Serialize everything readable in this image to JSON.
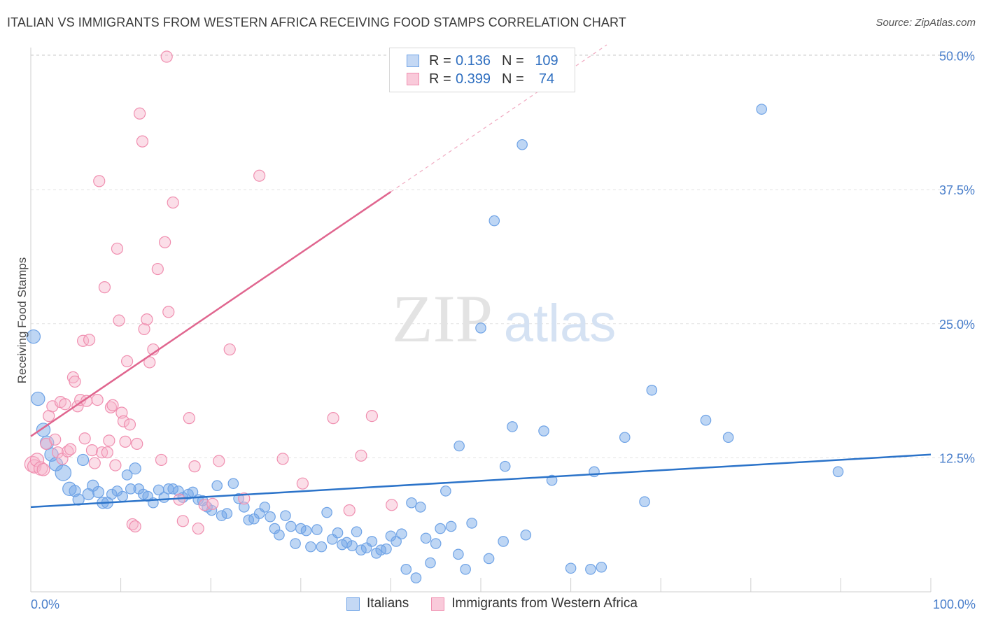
{
  "header": {
    "title": "ITALIAN VS IMMIGRANTS FROM WESTERN AFRICA RECEIVING FOOD STAMPS CORRELATION CHART",
    "source": "Source: ZipAtlas.com"
  },
  "watermark": {
    "left": "ZIP",
    "right": "atlas"
  },
  "legend_top": {
    "rows": [
      {
        "r_label": "R =",
        "r_value": "0.136",
        "n_label": "N =",
        "n_value": "109"
      },
      {
        "r_label": "R =",
        "r_value": "0.399",
        "n_label": "N =",
        "n_value": "74"
      }
    ]
  },
  "chart_data": {
    "type": "scatter",
    "xlabel": "",
    "ylabel": "Receiving Food Stamps",
    "xlim": [
      0,
      100
    ],
    "ylim": [
      0,
      52
    ],
    "x_tick_labels": [
      "0.0%",
      "100.0%"
    ],
    "y_ticks": [
      12.5,
      25.0,
      37.5,
      50.0
    ],
    "y_tick_labels": [
      "12.5%",
      "25.0%",
      "37.5%",
      "50.0%"
    ],
    "grid": "horizontal dashed",
    "legend_position": "bottom",
    "colors": {
      "italians": "#6fa3e6",
      "immigrants": "#f08fb0",
      "italians_line": "#2b73c9",
      "immigrants_line": "#e0668f",
      "axis_text": "#4a7fcb"
    },
    "series": [
      {
        "name": "Italians",
        "r": 0.136,
        "n": 109,
        "trend": {
          "x": [
            0,
            100
          ],
          "y": [
            7.9,
            12.8
          ]
        },
        "points": [
          [
            0.3,
            23.8,
            12
          ],
          [
            0.8,
            18.0,
            12
          ],
          [
            1.4,
            15.1,
            12
          ],
          [
            1.8,
            13.9,
            12
          ],
          [
            2.3,
            12.8,
            12
          ],
          [
            2.8,
            11.9,
            12
          ],
          [
            3.6,
            11.1,
            14
          ],
          [
            4.3,
            9.6,
            12
          ],
          [
            4.9,
            9.4,
            10
          ],
          [
            5.3,
            8.6,
            10
          ],
          [
            5.8,
            12.3,
            10
          ],
          [
            6.4,
            9.1,
            10
          ],
          [
            6.9,
            9.9,
            10
          ],
          [
            7.5,
            9.3,
            10
          ],
          [
            8.0,
            8.3,
            10
          ],
          [
            8.5,
            8.3,
            10
          ],
          [
            9.0,
            9.1,
            9
          ],
          [
            9.6,
            9.4,
            9
          ],
          [
            10.2,
            8.9,
            9
          ],
          [
            10.7,
            10.9,
            9
          ],
          [
            11.1,
            9.6,
            9
          ],
          [
            11.6,
            11.5,
            10
          ],
          [
            12.0,
            9.6,
            9
          ],
          [
            12.5,
            9.1,
            9
          ],
          [
            13.0,
            8.9,
            9
          ],
          [
            13.6,
            8.3,
            9
          ],
          [
            14.2,
            9.5,
            9
          ],
          [
            14.8,
            8.8,
            9
          ],
          [
            15.3,
            9.6,
            9
          ],
          [
            15.8,
            9.6,
            9
          ],
          [
            16.4,
            9.4,
            9
          ],
          [
            16.9,
            8.8,
            9
          ],
          [
            17.5,
            9.1,
            9
          ],
          [
            18.0,
            9.3,
            9
          ],
          [
            18.6,
            8.6,
            9
          ],
          [
            19.1,
            8.5,
            9
          ],
          [
            19.6,
            7.9,
            9
          ],
          [
            20.1,
            7.6,
            9
          ],
          [
            20.7,
            9.9,
            9
          ],
          [
            21.2,
            7.1,
            9
          ],
          [
            21.8,
            7.3,
            9
          ],
          [
            22.5,
            10.1,
            9
          ],
          [
            23.1,
            8.7,
            9
          ],
          [
            23.7,
            7.9,
            9
          ],
          [
            24.2,
            6.7,
            9
          ],
          [
            24.8,
            6.8,
            9
          ],
          [
            25.4,
            7.3,
            9
          ],
          [
            26.0,
            7.9,
            9
          ],
          [
            26.6,
            7.0,
            9
          ],
          [
            27.1,
            5.9,
            9
          ],
          [
            27.6,
            5.3,
            9
          ],
          [
            28.3,
            7.1,
            9
          ],
          [
            28.9,
            6.1,
            9
          ],
          [
            29.4,
            4.5,
            9
          ],
          [
            30.0,
            5.9,
            9
          ],
          [
            30.6,
            5.7,
            9
          ],
          [
            31.1,
            4.2,
            9
          ],
          [
            31.8,
            5.8,
            9
          ],
          [
            32.3,
            4.2,
            9
          ],
          [
            32.9,
            7.4,
            9
          ],
          [
            33.5,
            4.9,
            9
          ],
          [
            34.1,
            5.5,
            9
          ],
          [
            34.6,
            4.4,
            9
          ],
          [
            35.1,
            4.6,
            9
          ],
          [
            35.7,
            4.3,
            9
          ],
          [
            36.2,
            5.6,
            9
          ],
          [
            36.7,
            3.9,
            9
          ],
          [
            37.3,
            4.1,
            9
          ],
          [
            37.9,
            4.7,
            9
          ],
          [
            38.4,
            3.6,
            9
          ],
          [
            38.9,
            3.9,
            9
          ],
          [
            39.5,
            4.0,
            9
          ],
          [
            40.0,
            5.2,
            9
          ],
          [
            40.6,
            4.7,
            9
          ],
          [
            41.2,
            5.4,
            9
          ],
          [
            41.7,
            2.1,
            9
          ],
          [
            42.3,
            8.3,
            9
          ],
          [
            42.8,
            1.3,
            9
          ],
          [
            43.3,
            7.9,
            9
          ],
          [
            43.9,
            5.0,
            9
          ],
          [
            44.4,
            2.7,
            9
          ],
          [
            45.0,
            4.5,
            9
          ],
          [
            45.5,
            5.9,
            9
          ],
          [
            46.1,
            9.4,
            9
          ],
          [
            46.7,
            6.1,
            9
          ],
          [
            47.5,
            3.5,
            9
          ],
          [
            47.6,
            13.6,
            9
          ],
          [
            48.3,
            2.1,
            9
          ],
          [
            49.0,
            6.4,
            9
          ],
          [
            50.0,
            24.6,
            9
          ],
          [
            50.9,
            3.1,
            9
          ],
          [
            51.5,
            34.6,
            9
          ],
          [
            52.5,
            4.7,
            9
          ],
          [
            52.7,
            11.7,
            9
          ],
          [
            53.5,
            15.4,
            9
          ],
          [
            54.6,
            41.7,
            9
          ],
          [
            55.0,
            5.3,
            9
          ],
          [
            57.0,
            15.0,
            9
          ],
          [
            57.9,
            10.4,
            9
          ],
          [
            60.0,
            2.2,
            9
          ],
          [
            62.2,
            2.1,
            9
          ],
          [
            62.6,
            11.2,
            9
          ],
          [
            63.4,
            2.3,
            9
          ],
          [
            66.0,
            14.4,
            9
          ],
          [
            68.2,
            8.4,
            9
          ],
          [
            69.0,
            18.8,
            9
          ],
          [
            75.0,
            16.0,
            9
          ],
          [
            77.5,
            14.4,
            9
          ],
          [
            81.2,
            45.0,
            9
          ],
          [
            89.7,
            11.2,
            9
          ]
        ]
      },
      {
        "name": "Immigrants from Western Africa",
        "r": 0.399,
        "n": 74,
        "trend": {
          "x": [
            0,
            40
          ],
          "y": [
            14.5,
            37.3
          ]
        },
        "trend_dashed": {
          "x": [
            40,
            64
          ],
          "y": [
            37.3,
            51.0
          ]
        },
        "points": [
          [
            0.2,
            11.9,
            14
          ],
          [
            0.4,
            11.7,
            12
          ],
          [
            0.7,
            12.3,
            12
          ],
          [
            1.1,
            11.5,
            12
          ],
          [
            1.4,
            11.4,
            11
          ],
          [
            1.7,
            13.8,
            10
          ],
          [
            2.0,
            16.4,
            10
          ],
          [
            2.4,
            17.3,
            10
          ],
          [
            2.7,
            14.2,
            10
          ],
          [
            3.0,
            13.0,
            10
          ],
          [
            3.3,
            17.7,
            10
          ],
          [
            3.5,
            12.4,
            10
          ],
          [
            3.8,
            17.5,
            10
          ],
          [
            4.1,
            13.1,
            10
          ],
          [
            4.4,
            13.3,
            10
          ],
          [
            4.7,
            20.0,
            10
          ],
          [
            4.9,
            19.6,
            10
          ],
          [
            5.2,
            17.3,
            10
          ],
          [
            5.5,
            17.9,
            10
          ],
          [
            5.8,
            23.4,
            10
          ],
          [
            6.0,
            14.3,
            10
          ],
          [
            6.2,
            17.8,
            10
          ],
          [
            6.5,
            23.5,
            10
          ],
          [
            6.8,
            13.2,
            10
          ],
          [
            7.1,
            12.0,
            10
          ],
          [
            7.4,
            17.9,
            10
          ],
          [
            7.6,
            38.3,
            10
          ],
          [
            7.9,
            13.0,
            10
          ],
          [
            8.2,
            28.4,
            10
          ],
          [
            8.5,
            13.0,
            10
          ],
          [
            8.7,
            14.1,
            10
          ],
          [
            8.9,
            17.2,
            10
          ],
          [
            9.1,
            17.4,
            10
          ],
          [
            9.4,
            11.8,
            10
          ],
          [
            9.6,
            32.0,
            10
          ],
          [
            9.8,
            25.3,
            10
          ],
          [
            10.1,
            16.7,
            10
          ],
          [
            10.3,
            15.9,
            10
          ],
          [
            10.5,
            14.0,
            10
          ],
          [
            10.7,
            21.5,
            10
          ],
          [
            11.0,
            15.6,
            10
          ],
          [
            11.3,
            6.3,
            10
          ],
          [
            11.6,
            6.1,
            10
          ],
          [
            11.8,
            13.8,
            10
          ],
          [
            12.1,
            44.6,
            10
          ],
          [
            12.4,
            42.0,
            10
          ],
          [
            12.6,
            24.5,
            10
          ],
          [
            12.9,
            25.4,
            10
          ],
          [
            13.2,
            21.4,
            10
          ],
          [
            13.6,
            22.6,
            10
          ],
          [
            14.1,
            30.1,
            10
          ],
          [
            14.5,
            12.3,
            10
          ],
          [
            14.9,
            32.6,
            10
          ],
          [
            15.3,
            26.1,
            10
          ],
          [
            15.8,
            36.3,
            10
          ],
          [
            16.5,
            8.6,
            10
          ],
          [
            16.9,
            6.6,
            10
          ],
          [
            17.6,
            16.2,
            10
          ],
          [
            18.2,
            11.7,
            10
          ],
          [
            18.6,
            5.9,
            10
          ],
          [
            19.3,
            8.1,
            10
          ],
          [
            20.2,
            8.2,
            10
          ],
          [
            20.9,
            12.2,
            10
          ],
          [
            22.1,
            22.6,
            10
          ],
          [
            23.7,
            8.7,
            10
          ],
          [
            25.4,
            38.8,
            10
          ],
          [
            28.0,
            12.4,
            10
          ],
          [
            30.2,
            10.1,
            10
          ],
          [
            33.6,
            16.2,
            10
          ],
          [
            35.4,
            7.6,
            10
          ],
          [
            36.7,
            12.7,
            10
          ],
          [
            37.9,
            16.4,
            10
          ],
          [
            40.1,
            8.1,
            10
          ],
          [
            15.1,
            49.9,
            10
          ]
        ]
      }
    ]
  },
  "bottom_legend": {
    "items": [
      "Italians",
      "Immigrants from Western Africa"
    ]
  }
}
